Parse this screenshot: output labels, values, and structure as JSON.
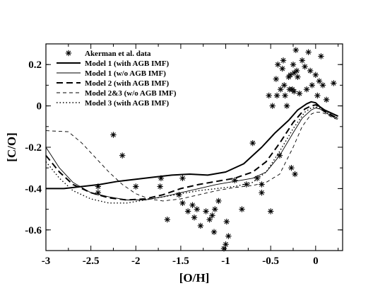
{
  "chart_data": {
    "type": "scatter",
    "xlabel": "[O/H]",
    "ylabel": "[C/O]",
    "xlim": [
      -3.0,
      0.3
    ],
    "ylim": [
      -0.7,
      0.3
    ],
    "xticks": [
      -3,
      -2.5,
      -2,
      -1.5,
      -1,
      -0.5,
      0
    ],
    "xtick_labels": [
      "-3",
      "-2.5",
      "-2",
      "-1.5",
      "-1",
      "-0.5",
      "0"
    ],
    "yticks": [
      -0.6,
      -0.4,
      -0.2,
      0,
      0.2
    ],
    "ytick_labels": [
      "-0.6",
      "-0.4",
      "-0.2",
      "0",
      "0.2"
    ],
    "grid": false,
    "legend_position": "top-left",
    "series": [
      {
        "name": "Akerman et al. data",
        "kind": "scatter",
        "marker": "asterisk",
        "points": [
          [
            -2.42,
            -0.39
          ],
          [
            -2.42,
            -0.42
          ],
          [
            -2.25,
            -0.14
          ],
          [
            -2.15,
            -0.24
          ],
          [
            -2.0,
            -0.39
          ],
          [
            -1.73,
            -0.39
          ],
          [
            -1.72,
            -0.35
          ],
          [
            -1.65,
            -0.55
          ],
          [
            -1.52,
            -0.43
          ],
          [
            -1.48,
            -0.35
          ],
          [
            -1.48,
            -0.47
          ],
          [
            -1.42,
            -0.51
          ],
          [
            -1.37,
            -0.48
          ],
          [
            -1.35,
            -0.54
          ],
          [
            -1.32,
            -0.5
          ],
          [
            -1.28,
            -0.58
          ],
          [
            -1.22,
            -0.51
          ],
          [
            -1.18,
            -0.55
          ],
          [
            -1.15,
            -0.53
          ],
          [
            -1.13,
            -0.61
          ],
          [
            -1.12,
            -0.5
          ],
          [
            -1.08,
            -0.46
          ],
          [
            -1.02,
            -0.69
          ],
          [
            -1.0,
            -0.67
          ],
          [
            -0.99,
            -0.56
          ],
          [
            -0.97,
            -0.63
          ],
          [
            -0.9,
            -0.36
          ],
          [
            -0.82,
            -0.5
          ],
          [
            -0.77,
            -0.38
          ],
          [
            -0.7,
            -0.18
          ],
          [
            -0.65,
            -0.35
          ],
          [
            -0.6,
            -0.42
          ],
          [
            -0.6,
            -0.38
          ],
          [
            -0.52,
            0.05
          ],
          [
            -0.5,
            -0.51
          ],
          [
            -0.48,
            0.0
          ],
          [
            -0.44,
            0.13
          ],
          [
            -0.43,
            0.05
          ],
          [
            -0.42,
            0.2
          ],
          [
            -0.4,
            -0.24
          ],
          [
            -0.39,
            0.08
          ],
          [
            -0.37,
            0.18
          ],
          [
            -0.36,
            0.22
          ],
          [
            -0.35,
            0.1
          ],
          [
            -0.34,
            0.05
          ],
          [
            -0.32,
            0.0
          ],
          [
            -0.3,
            0.14
          ],
          [
            -0.29,
            0.08
          ],
          [
            -0.28,
            0.15
          ],
          [
            -0.27,
            -0.3
          ],
          [
            -0.26,
            0.08
          ],
          [
            -0.25,
            0.2
          ],
          [
            -0.24,
            0.16
          ],
          [
            -0.24,
            0.07
          ],
          [
            -0.23,
            -0.33
          ],
          [
            -0.22,
            0.27
          ],
          [
            -0.21,
            0.17
          ],
          [
            -0.2,
            0.14
          ],
          [
            -0.18,
            0.06
          ],
          [
            -0.15,
            0.22
          ],
          [
            -0.12,
            0.19
          ],
          [
            -0.1,
            0.08
          ],
          [
            -0.08,
            0.26
          ],
          [
            -0.06,
            0.17
          ],
          [
            -0.04,
            0.1
          ],
          [
            0.0,
            0.15
          ],
          [
            0.02,
            0.05
          ],
          [
            0.04,
            0.12
          ],
          [
            0.06,
            0.24
          ],
          [
            0.08,
            0.1
          ],
          [
            0.12,
            0.03
          ],
          [
            0.2,
            0.11
          ]
        ]
      },
      {
        "name": "Model 1 (with AGB IMF)",
        "kind": "line",
        "dash": "none",
        "width": 2.0,
        "points": [
          [
            -3.0,
            -0.4
          ],
          [
            -2.8,
            -0.4
          ],
          [
            -2.6,
            -0.39
          ],
          [
            -2.4,
            -0.38
          ],
          [
            -2.2,
            -0.365
          ],
          [
            -2.0,
            -0.355
          ],
          [
            -1.8,
            -0.345
          ],
          [
            -1.6,
            -0.335
          ],
          [
            -1.4,
            -0.33
          ],
          [
            -1.2,
            -0.335
          ],
          [
            -1.0,
            -0.32
          ],
          [
            -0.8,
            -0.28
          ],
          [
            -0.6,
            -0.2
          ],
          [
            -0.45,
            -0.13
          ],
          [
            -0.3,
            -0.07
          ],
          [
            -0.2,
            -0.02
          ],
          [
            -0.1,
            0.01
          ],
          [
            -0.05,
            0.02
          ],
          [
            0.0,
            0.015
          ],
          [
            0.05,
            -0.005
          ],
          [
            0.1,
            -0.02
          ],
          [
            0.2,
            -0.04
          ],
          [
            0.25,
            -0.05
          ]
        ]
      },
      {
        "name": "Model 1 (w/o AGB IMF)",
        "kind": "line",
        "dash": "none",
        "width": 0.9,
        "points": [
          [
            -3.0,
            -0.2
          ],
          [
            -2.85,
            -0.3
          ],
          [
            -2.7,
            -0.37
          ],
          [
            -2.5,
            -0.42
          ],
          [
            -2.3,
            -0.44
          ],
          [
            -2.1,
            -0.455
          ],
          [
            -1.9,
            -0.455
          ],
          [
            -1.7,
            -0.44
          ],
          [
            -1.5,
            -0.42
          ],
          [
            -1.3,
            -0.4
          ],
          [
            -1.1,
            -0.38
          ],
          [
            -0.9,
            -0.365
          ],
          [
            -0.7,
            -0.35
          ],
          [
            -0.55,
            -0.32
          ],
          [
            -0.4,
            -0.24
          ],
          [
            -0.25,
            -0.13
          ],
          [
            -0.15,
            -0.06
          ],
          [
            -0.05,
            -0.02
          ],
          [
            0.0,
            -0.01
          ],
          [
            0.05,
            -0.015
          ],
          [
            0.1,
            -0.03
          ],
          [
            0.2,
            -0.055
          ],
          [
            0.25,
            -0.06
          ]
        ]
      },
      {
        "name": "Model 2 (with AGB IMF)",
        "kind": "line",
        "dash": "long",
        "width": 2.0,
        "points": [
          [
            -3.0,
            -0.24
          ],
          [
            -2.85,
            -0.32
          ],
          [
            -2.7,
            -0.38
          ],
          [
            -2.5,
            -0.42
          ],
          [
            -2.3,
            -0.445
          ],
          [
            -2.1,
            -0.455
          ],
          [
            -1.9,
            -0.45
          ],
          [
            -1.7,
            -0.43
          ],
          [
            -1.5,
            -0.4
          ],
          [
            -1.3,
            -0.38
          ],
          [
            -1.1,
            -0.365
          ],
          [
            -0.9,
            -0.35
          ],
          [
            -0.7,
            -0.32
          ],
          [
            -0.55,
            -0.27
          ],
          [
            -0.4,
            -0.18
          ],
          [
            -0.25,
            -0.08
          ],
          [
            -0.12,
            -0.015
          ],
          [
            -0.05,
            0.0
          ],
          [
            0.0,
            0.005
          ],
          [
            0.05,
            -0.005
          ],
          [
            0.1,
            -0.025
          ],
          [
            0.2,
            -0.05
          ],
          [
            0.25,
            -0.06
          ]
        ]
      },
      {
        "name": "Model 2&3 (w/o AGB IMF)",
        "kind": "line",
        "dash": "short",
        "width": 0.9,
        "points": [
          [
            -3.0,
            -0.12
          ],
          [
            -2.75,
            -0.125
          ],
          [
            -2.6,
            -0.18
          ],
          [
            -2.45,
            -0.25
          ],
          [
            -2.3,
            -0.32
          ],
          [
            -2.15,
            -0.38
          ],
          [
            -2.0,
            -0.425
          ],
          [
            -1.85,
            -0.45
          ],
          [
            -1.7,
            -0.46
          ],
          [
            -1.5,
            -0.45
          ],
          [
            -1.3,
            -0.43
          ],
          [
            -1.1,
            -0.41
          ],
          [
            -0.9,
            -0.395
          ],
          [
            -0.7,
            -0.385
          ],
          [
            -0.55,
            -0.37
          ],
          [
            -0.4,
            -0.33
          ],
          [
            -0.25,
            -0.2
          ],
          [
            -0.15,
            -0.1
          ],
          [
            -0.05,
            -0.04
          ],
          [
            0.0,
            -0.03
          ],
          [
            0.05,
            -0.03
          ],
          [
            0.12,
            -0.04
          ],
          [
            0.2,
            -0.06
          ],
          [
            0.25,
            -0.065
          ]
        ]
      },
      {
        "name": "Model 3 (with AGB IMF)",
        "kind": "line",
        "dash": "dotted",
        "width": 1.4,
        "points": [
          [
            -3.0,
            -0.27
          ],
          [
            -2.85,
            -0.35
          ],
          [
            -2.7,
            -0.41
          ],
          [
            -2.5,
            -0.45
          ],
          [
            -2.3,
            -0.47
          ],
          [
            -2.1,
            -0.47
          ],
          [
            -1.9,
            -0.455
          ],
          [
            -1.7,
            -0.44
          ],
          [
            -1.5,
            -0.425
          ],
          [
            -1.3,
            -0.41
          ],
          [
            -1.1,
            -0.4
          ],
          [
            -0.9,
            -0.39
          ],
          [
            -0.7,
            -0.37
          ],
          [
            -0.55,
            -0.32
          ],
          [
            -0.4,
            -0.22
          ],
          [
            -0.25,
            -0.11
          ],
          [
            -0.12,
            -0.03
          ],
          [
            -0.05,
            -0.01
          ],
          [
            0.0,
            -0.005
          ],
          [
            0.05,
            -0.01
          ],
          [
            0.1,
            -0.025
          ],
          [
            0.2,
            -0.05
          ],
          [
            0.25,
            -0.06
          ]
        ]
      }
    ]
  }
}
